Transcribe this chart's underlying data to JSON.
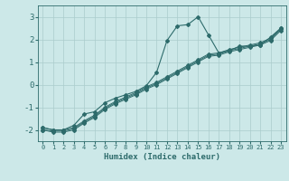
{
  "xlabel": "Humidex (Indice chaleur)",
  "background_color": "#cce8e8",
  "grid_color": "#aacccc",
  "line_color": "#2d6b6b",
  "xlim": [
    -0.5,
    23.5
  ],
  "ylim": [
    -2.5,
    3.5
  ],
  "yticks": [
    -2,
    -1,
    0,
    1,
    2,
    3
  ],
  "xticks": [
    0,
    1,
    2,
    3,
    4,
    5,
    6,
    7,
    8,
    9,
    10,
    11,
    12,
    13,
    14,
    15,
    16,
    17,
    18,
    19,
    20,
    21,
    22,
    23
  ],
  "series1_x": [
    0,
    1,
    2,
    3,
    4,
    5,
    6,
    7,
    8,
    9,
    10,
    11,
    12,
    13,
    14,
    15,
    16,
    17,
    18,
    19,
    20,
    21,
    22,
    23
  ],
  "series1_y": [
    -1.9,
    -2.0,
    -2.0,
    -1.8,
    -1.3,
    -1.2,
    -0.8,
    -0.6,
    -0.45,
    -0.3,
    -0.05,
    0.55,
    1.95,
    2.6,
    2.65,
    3.0,
    2.2,
    1.4,
    1.5,
    1.7,
    1.7,
    1.75,
    2.1,
    2.5
  ],
  "series2_x": [
    0,
    1,
    2,
    3,
    4,
    5,
    6,
    7,
    8,
    9,
    10,
    11,
    12,
    13,
    14,
    15,
    16,
    17,
    18,
    19,
    20,
    21,
    22,
    23
  ],
  "series2_y": [
    -1.9,
    -2.0,
    -2.0,
    -1.9,
    -1.6,
    -1.35,
    -1.0,
    -0.75,
    -0.55,
    -0.35,
    -0.1,
    0.1,
    0.35,
    0.6,
    0.85,
    1.1,
    1.35,
    1.4,
    1.55,
    1.65,
    1.75,
    1.85,
    2.05,
    2.5
  ],
  "series3_x": [
    0,
    1,
    2,
    3,
    4,
    5,
    6,
    7,
    8,
    9,
    10,
    11,
    12,
    13,
    14,
    15,
    16,
    17,
    18,
    19,
    20,
    21,
    22,
    23
  ],
  "series3_y": [
    -2.0,
    -2.05,
    -2.05,
    -1.95,
    -1.65,
    -1.4,
    -1.05,
    -0.8,
    -0.6,
    -0.4,
    -0.15,
    0.05,
    0.3,
    0.55,
    0.8,
    1.05,
    1.3,
    1.35,
    1.5,
    1.6,
    1.7,
    1.8,
    2.0,
    2.45
  ],
  "series4_x": [
    0,
    1,
    2,
    3,
    4,
    5,
    6,
    7,
    8,
    9,
    10,
    11,
    12,
    13,
    14,
    15,
    16,
    17,
    18,
    19,
    20,
    21,
    22,
    23
  ],
  "series4_y": [
    -2.0,
    -2.1,
    -2.1,
    -2.0,
    -1.7,
    -1.45,
    -1.1,
    -0.85,
    -0.65,
    -0.45,
    -0.2,
    0.0,
    0.25,
    0.5,
    0.75,
    1.0,
    1.25,
    1.3,
    1.45,
    1.55,
    1.65,
    1.75,
    1.95,
    2.4
  ]
}
